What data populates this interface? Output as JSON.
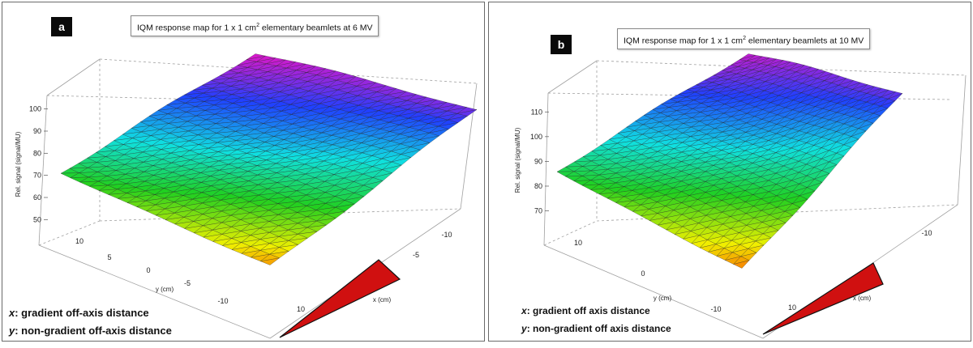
{
  "chart_data": [
    {
      "panel_label": "a",
      "type": "surface-3d",
      "title_prefix": "IQM response map for  1 x 1 cm",
      "title_sup": "2",
      "title_suffix": " elementary beamlets at 6 MV",
      "zlabel": "Rel. signal (signal/MU)",
      "ylabel": "y (cm)",
      "xlabel": "x (cm)",
      "z_ticks": [
        "50",
        "60",
        "70",
        "80",
        "90",
        "100"
      ],
      "zlim": [
        45,
        105
      ],
      "y_ticks": [
        "10",
        "5",
        "0",
        "-5",
        "-10"
      ],
      "x_ticks": [
        "-10",
        "-5",
        "10"
      ],
      "corner_values": {
        "left_y_pos": 70,
        "top_back": 103,
        "right_x_neg": 100,
        "front_low": 50
      },
      "legend_lines": [
        {
          "label": "x",
          "text": ": gradient off-axis distance"
        },
        {
          "label": "y",
          "text": ": non-gradient off-axis distance"
        }
      ]
    },
    {
      "panel_label": "b",
      "type": "surface-3d",
      "title_prefix": "IQM response map for  1 x 1 cm",
      "title_sup": "2",
      "title_suffix": " elementary beamlets at 10 MV",
      "zlabel": "Rel. signal (signal/MU)",
      "ylabel": "y (cm)",
      "xlabel": "x (cm)",
      "z_ticks": [
        "70",
        "80",
        "90",
        "100",
        "110"
      ],
      "zlim": [
        62,
        115
      ],
      "y_ticks": [
        "10",
        "0",
        "-10"
      ],
      "x_ticks": [
        "-10",
        "10"
      ],
      "corner_values": {
        "left_y_pos": 85,
        "top_back": 112,
        "right_x_neg": 110,
        "front_low": 65
      },
      "legend_lines": [
        {
          "label": "x",
          "text": ": gradient off axis distance"
        },
        {
          "label": "y",
          "text": ": non-gradient off axis distance"
        }
      ]
    }
  ],
  "colors": {
    "surface_high": "#ff10c0",
    "surface_mid_high": "#2040ff",
    "surface_mid": "#10e0e0",
    "surface_mid_low": "#20d020",
    "surface_low_mid": "#f0f000",
    "surface_low": "#ff2000",
    "wedge": "#d01010",
    "box_lines": "#a0a0a0"
  }
}
